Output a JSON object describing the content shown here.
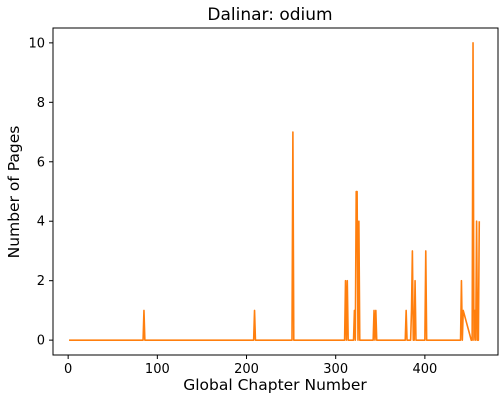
{
  "chart_data": {
    "type": "line",
    "title": "Dalinar: odium",
    "xlabel": "Global Chapter Number",
    "ylabel": "Number of Pages",
    "xlim": [
      -17,
      482
    ],
    "ylim": [
      -0.5,
      10.5
    ],
    "xticks": [
      0,
      100,
      200,
      300,
      400
    ],
    "yticks": [
      0,
      2,
      4,
      6,
      8,
      10
    ],
    "grid": false,
    "legend": "none",
    "series": [
      {
        "color": "#ff7f0e",
        "x": [
          1,
          84,
          85,
          86,
          208,
          209,
          210,
          251,
          252,
          253,
          310,
          311,
          312,
          313,
          314,
          320,
          321,
          322,
          323,
          324,
          325,
          326,
          327,
          328,
          329,
          342,
          343,
          344,
          345,
          346,
          347,
          378,
          379,
          380,
          384,
          385,
          386,
          387,
          388,
          389,
          390,
          391,
          400,
          401,
          402,
          440,
          441,
          442,
          443,
          452,
          453,
          454,
          455,
          456,
          457,
          458,
          459,
          460,
          461
        ],
        "y": [
          0,
          0,
          1,
          0,
          0,
          1,
          0,
          0,
          7,
          0,
          0,
          2,
          0,
          2,
          0,
          0,
          1,
          0,
          5,
          5,
          0,
          4,
          0,
          0,
          0,
          0,
          1,
          0,
          1,
          0,
          0,
          0,
          1,
          0,
          0,
          1,
          3,
          0,
          0,
          2,
          0,
          0,
          0,
          3,
          0,
          0,
          2,
          0,
          1,
          0,
          0,
          10,
          0,
          1,
          0,
          4,
          0,
          0,
          4
        ]
      }
    ]
  }
}
